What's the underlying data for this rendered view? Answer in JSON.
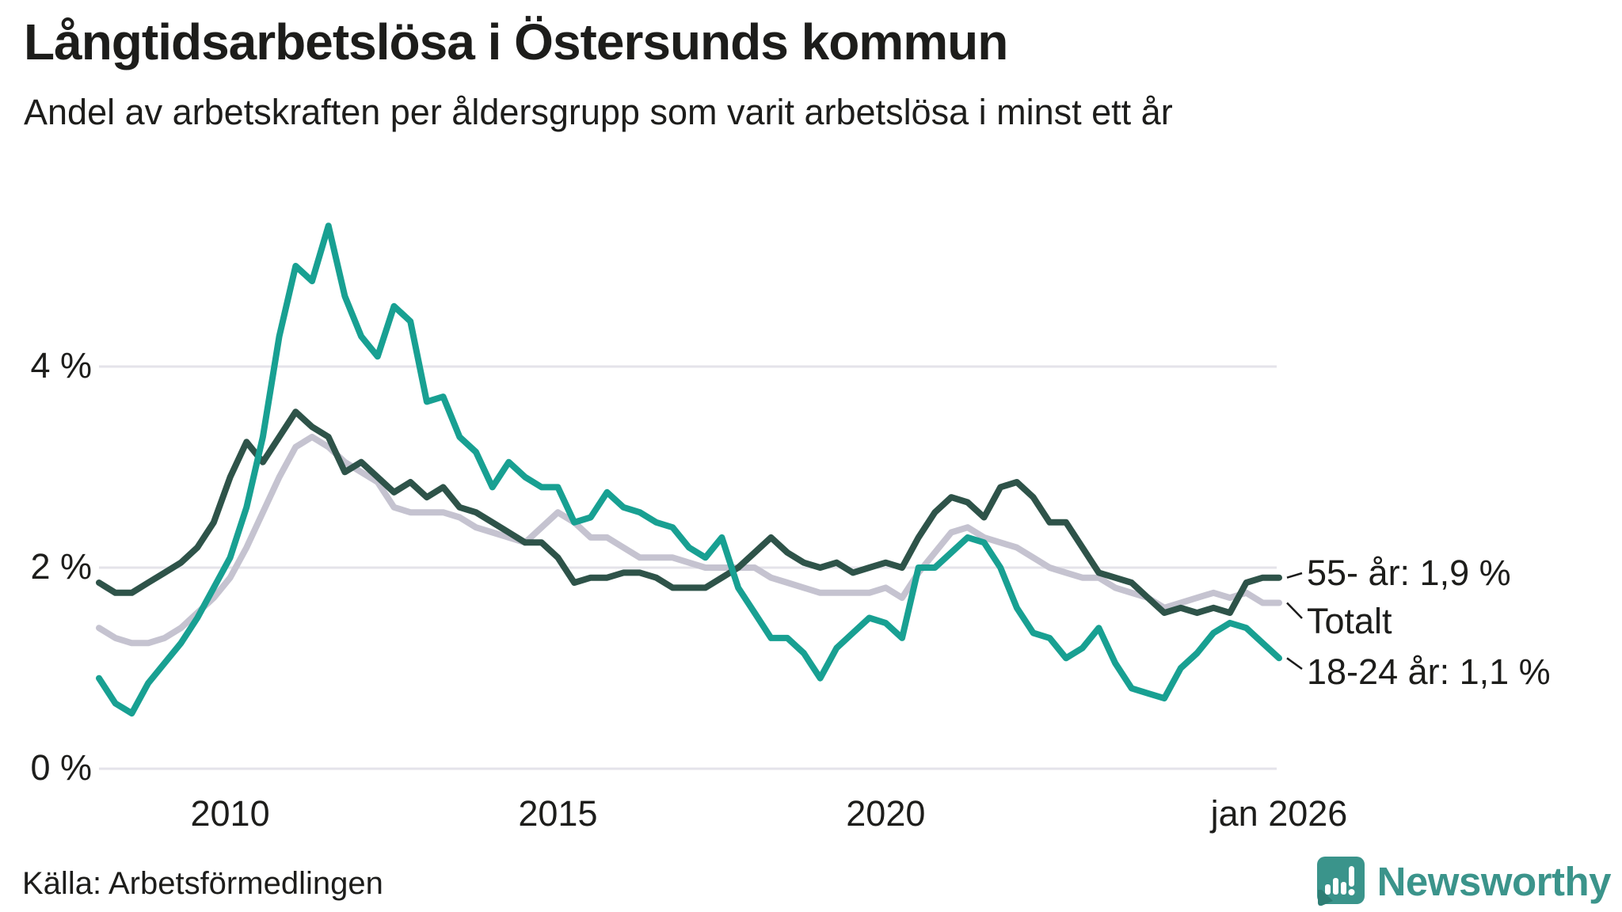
{
  "header": {
    "title": "Långtidsarbetslösa i Östersunds kommun",
    "subtitle": "Andel av arbetskraften per åldersgrupp som varit arbetslösa i minst ett år"
  },
  "chart_data": {
    "type": "line",
    "title": "Långtidsarbetslösa i Östersunds kommun",
    "subtitle": "Andel av arbetskraften per åldersgrupp som varit arbetslösa i minst ett år",
    "x_unit": "year",
    "x_start": 2008.0,
    "x_step": 0.25,
    "x_end": 2026.0,
    "ylim": [
      0,
      5.7
    ],
    "grid": true,
    "gridline_color": "#e4e3ea",
    "legend_position": "right-end-labels",
    "y_axis": {
      "ticks": [
        {
          "value": 0,
          "label": "0 %"
        },
        {
          "value": 2,
          "label": "2 %"
        },
        {
          "value": 4,
          "label": "4 %"
        }
      ]
    },
    "x_axis": {
      "ticks": [
        {
          "value": 2010,
          "label": "2010"
        },
        {
          "value": 2015,
          "label": "2015"
        },
        {
          "value": 2020,
          "label": "2020"
        },
        {
          "value": 2026,
          "label": "jan 2026"
        }
      ]
    },
    "series": [
      {
        "name": "Totalt",
        "color": "#c5c3d0",
        "end_label": "Totalt",
        "end_value": 1.65,
        "values": [
          1.4,
          1.3,
          1.25,
          1.25,
          1.3,
          1.4,
          1.55,
          1.7,
          1.9,
          2.2,
          2.55,
          2.9,
          3.2,
          3.3,
          3.2,
          3.05,
          2.95,
          2.85,
          2.6,
          2.55,
          2.55,
          2.55,
          2.5,
          2.4,
          2.35,
          2.3,
          2.25,
          2.4,
          2.55,
          2.45,
          2.3,
          2.3,
          2.2,
          2.1,
          2.1,
          2.1,
          2.05,
          2.0,
          2.0,
          2.0,
          2.0,
          1.9,
          1.85,
          1.8,
          1.75,
          1.75,
          1.75,
          1.75,
          1.8,
          1.7,
          1.95,
          2.15,
          2.35,
          2.4,
          2.3,
          2.25,
          2.2,
          2.1,
          2.0,
          1.95,
          1.9,
          1.9,
          1.8,
          1.75,
          1.7,
          1.6,
          1.65,
          1.7,
          1.75,
          1.7,
          1.75,
          1.65,
          1.65
        ]
      },
      {
        "name": "55- år",
        "color": "#2e5349",
        "end_label": "55- år: 1,9 %",
        "end_value": 1.9,
        "values": [
          1.85,
          1.75,
          1.75,
          1.85,
          1.95,
          2.05,
          2.2,
          2.45,
          2.9,
          3.25,
          3.05,
          3.3,
          3.55,
          3.4,
          3.3,
          2.95,
          3.05,
          2.9,
          2.75,
          2.85,
          2.7,
          2.8,
          2.6,
          2.55,
          2.45,
          2.35,
          2.25,
          2.25,
          2.1,
          1.85,
          1.9,
          1.9,
          1.95,
          1.95,
          1.9,
          1.8,
          1.8,
          1.8,
          1.9,
          2.0,
          2.15,
          2.3,
          2.15,
          2.05,
          2.0,
          2.05,
          1.95,
          2.0,
          2.05,
          2.0,
          2.3,
          2.55,
          2.7,
          2.65,
          2.5,
          2.8,
          2.85,
          2.7,
          2.45,
          2.45,
          2.2,
          1.95,
          1.9,
          1.85,
          1.7,
          1.55,
          1.6,
          1.55,
          1.6,
          1.55,
          1.85,
          1.9,
          1.9
        ]
      },
      {
        "name": "18-24 år",
        "color": "#18a092",
        "end_label": "18-24 år: 1,1 %",
        "end_value": 1.1,
        "values": [
          0.9,
          0.65,
          0.55,
          0.85,
          1.05,
          1.25,
          1.5,
          1.8,
          2.1,
          2.6,
          3.3,
          4.3,
          5.0,
          4.85,
          5.4,
          4.7,
          4.3,
          4.1,
          4.6,
          4.45,
          3.65,
          3.7,
          3.3,
          3.15,
          2.8,
          3.05,
          2.9,
          2.8,
          2.8,
          2.45,
          2.5,
          2.75,
          2.6,
          2.55,
          2.45,
          2.4,
          2.2,
          2.1,
          2.3,
          1.8,
          1.55,
          1.3,
          1.3,
          1.15,
          0.9,
          1.2,
          1.35,
          1.5,
          1.45,
          1.3,
          2.0,
          2.0,
          2.15,
          2.3,
          2.25,
          2.0,
          1.6,
          1.35,
          1.3,
          1.1,
          1.2,
          1.4,
          1.05,
          0.8,
          0.75,
          0.7,
          1.0,
          1.15,
          1.35,
          1.45,
          1.4,
          1.25,
          1.1
        ]
      }
    ]
  },
  "footer": {
    "source": "Källa: Arbetsförmedlingen",
    "brand": {
      "name": "Newsworthy",
      "color": "#3b948b",
      "icon": "newsworthy-bar-chart-speech-bubble-icon"
    }
  }
}
